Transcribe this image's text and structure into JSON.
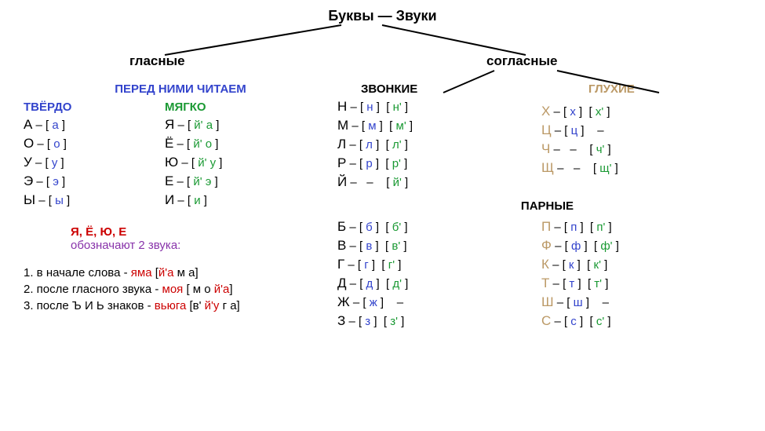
{
  "root": "Буквы — Звуки",
  "branch_vowels": "гласные",
  "branch_consonants": "согласные",
  "vowels": {
    "hdr_main": "ПЕРЕД НИМИ ЧИТАЕМ",
    "hdr_hard": "ТВЁРДО",
    "hdr_soft": "МЯГКО",
    "hard": [
      {
        "l": "А",
        "s": "а"
      },
      {
        "l": "О",
        "s": "о"
      },
      {
        "l": "У",
        "s": "у"
      },
      {
        "l": "Э",
        "s": "э"
      },
      {
        "l": "Ы",
        "s": "ы"
      }
    ],
    "soft": [
      {
        "l": "Я",
        "s": "й' а"
      },
      {
        "l": "Ё",
        "s": "й' о"
      },
      {
        "l": "Ю",
        "s": "й' у"
      },
      {
        "l": "Е",
        "s": "й' э"
      },
      {
        "l": "И",
        "s": "и"
      }
    ],
    "note_letters": "Я, Ё, Ю, Е",
    "note_text": "обозначают 2 звука:",
    "ex1_pre": "1. в начале слова - ",
    "ex1_w": "яма",
    "ex1_tr": " [й'а м а]",
    "ex2_pre": "2. после гласного звука - ",
    "ex2_w": "моя",
    "ex2_tr": " [ м о й'а]",
    "ex3_pre": "3. после Ъ И Ь знаков - ",
    "ex3_w": "вьюга",
    "ex3_tr": " [в' й'у г а]"
  },
  "consonants": {
    "hdr_zv": "ЗВОНКИЕ",
    "hdr_gl": "ГЛУХИЕ",
    "hdr_paired": "ПАРНЫЕ",
    "zvonkie": [
      {
        "l": "Н",
        "h": "н",
        "s": "н'"
      },
      {
        "l": "М",
        "h": "м",
        "s": "м'"
      },
      {
        "l": "Л",
        "h": "л",
        "s": "л'"
      },
      {
        "l": "Р",
        "h": "р",
        "s": "р'"
      },
      {
        "l": "Й",
        "h": "",
        "s": "й'"
      }
    ],
    "glukhie": [
      {
        "l": "Х",
        "h": "х",
        "s": "х'"
      },
      {
        "l": "Ц",
        "h": "ц",
        "s": ""
      },
      {
        "l": "Ч",
        "h": "",
        "s": "ч'"
      },
      {
        "l": "Щ",
        "h": "",
        "s": "щ'"
      }
    ],
    "paired_zv": [
      {
        "l": "Б",
        "h": "б",
        "s": "б'"
      },
      {
        "l": "В",
        "h": "в",
        "s": "в'"
      },
      {
        "l": "Г",
        "h": "г",
        "s": "г'"
      },
      {
        "l": "Д",
        "h": "д",
        "s": "д'"
      },
      {
        "l": "Ж",
        "h": "ж",
        "s": ""
      },
      {
        "l": "З",
        "h": "з",
        "s": "з'"
      }
    ],
    "paired_gl": [
      {
        "l": "П",
        "h": "п",
        "s": "п'"
      },
      {
        "l": "Ф",
        "h": "ф",
        "s": "ф'"
      },
      {
        "l": "К",
        "h": "к",
        "s": "к'"
      },
      {
        "l": "Т",
        "h": "т",
        "s": "т'"
      },
      {
        "l": "Ш",
        "h": "ш",
        "s": ""
      },
      {
        "l": "С",
        "h": "с",
        "s": "с'"
      }
    ]
  },
  "colors": {
    "blue": "#3344cc",
    "green": "#1a9933",
    "brown": "#bb9966",
    "red": "#cc0000",
    "purple": "#8833aa"
  },
  "dash": "–"
}
